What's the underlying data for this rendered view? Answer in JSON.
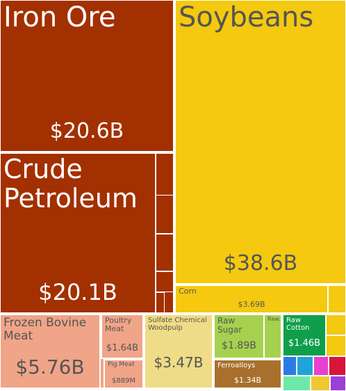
{
  "chart_data": {
    "type": "treemap",
    "items": [
      {
        "name": "Iron Ore",
        "value": 20.6,
        "value_label": "$20.6B",
        "color": "#a33000"
      },
      {
        "name": "Soybeans",
        "value": 38.6,
        "value_label": "$38.6B",
        "color": "#f4c90f"
      },
      {
        "name": "Crude Petroleum",
        "value": 20.1,
        "value_label": "$20.1B",
        "color": "#a33000"
      },
      {
        "name": "Corn",
        "value": 3.69,
        "value_label": "$3.69B",
        "color": "#f4c90f"
      },
      {
        "name": "Frozen Bovine Meat",
        "value": 5.76,
        "value_label": "$5.76B",
        "color": "#f0a488"
      },
      {
        "name": "Poultry Meat",
        "value": 1.64,
        "value_label": "$1.64B",
        "color": "#f0a488"
      },
      {
        "name": "Pig Meat",
        "value": 0.889,
        "value_label": "$889M",
        "color": "#f0a488"
      },
      {
        "name": "Sulfate Chemical Woodpulp",
        "value": 3.47,
        "value_label": "$3.47B",
        "color": "#efdc86"
      },
      {
        "name": "Raw Sugar",
        "value": 1.89,
        "value_label": "$1.89B",
        "color": "#a6d14e"
      },
      {
        "name": "Raw...",
        "value": 0.4,
        "color": "#a6d14e"
      },
      {
        "name": "Ferroalloys",
        "value": 1.34,
        "value_label": "$1.34B",
        "color": "#a8702c"
      },
      {
        "name": "Raw Cotton",
        "value": 1.46,
        "value_label": "$1.46B",
        "color": "#0f9f4b"
      }
    ]
  }
}
